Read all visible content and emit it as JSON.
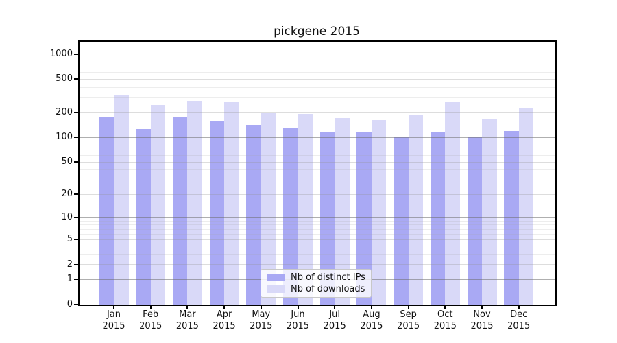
{
  "title": "pickgene 2015",
  "chart_data": {
    "type": "bar",
    "title": "pickgene 2015",
    "xlabel": "",
    "ylabel": "",
    "y_scale": "log1p",
    "grid": true,
    "legend_position": "lower center",
    "categories": [
      "Jan",
      "Feb",
      "Mar",
      "Apr",
      "May",
      "Jun",
      "Jul",
      "Aug",
      "Sep",
      "Oct",
      "Nov",
      "Dec"
    ],
    "category_year": "2015",
    "yticks": [
      0,
      1,
      2,
      5,
      10,
      20,
      50,
      100,
      200,
      500,
      1000
    ],
    "ylim": [
      0,
      1430
    ],
    "series": [
      {
        "name": "Nb of distinct IPs",
        "color": "#a9a9f4",
        "values": [
          175,
          127,
          174,
          157,
          141,
          130,
          116,
          115,
          103,
          116,
          100,
          119
        ]
      },
      {
        "name": "Nb of downloads",
        "color": "#d9d9f8",
        "values": [
          326,
          245,
          277,
          265,
          198,
          192,
          170,
          162,
          186,
          266,
          168,
          222
        ]
      }
    ]
  }
}
